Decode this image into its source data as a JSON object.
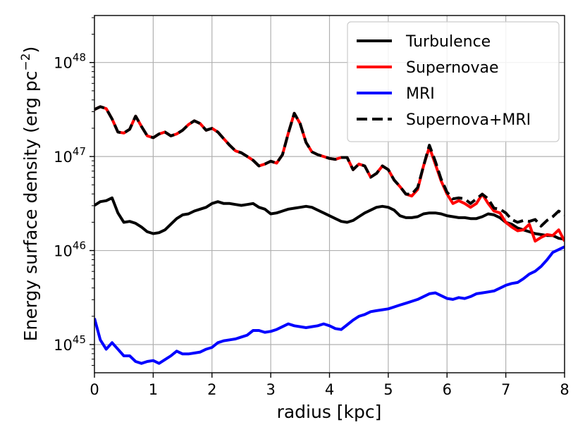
{
  "chart_data": {
    "type": "line",
    "title": "",
    "xlabel": "radius [kpc]",
    "ylabel_base": "Energy surface density (erg pc",
    "ylabel_exp": "−2",
    "ylabel_close": ")",
    "ylabel": "Energy surface density (erg pc−2)",
    "xlim": [
      0,
      8
    ],
    "ylim_log10": [
      44.7,
      48.5
    ],
    "yscale": "log",
    "grid": true,
    "legend_position": "top-right",
    "x_ticks": [
      {
        "value": 0,
        "label": "0"
      },
      {
        "value": 1,
        "label": "1"
      },
      {
        "value": 2,
        "label": "2"
      },
      {
        "value": 3,
        "label": "3"
      },
      {
        "value": 4,
        "label": "4"
      },
      {
        "value": 5,
        "label": "5"
      },
      {
        "value": 6,
        "label": "6"
      },
      {
        "value": 7,
        "label": "7"
      },
      {
        "value": 8,
        "label": "8"
      }
    ],
    "y_ticks": [
      {
        "exp": 45,
        "base": "10",
        "sup": "45"
      },
      {
        "exp": 46,
        "base": "10",
        "sup": "46"
      },
      {
        "exp": 47,
        "base": "10",
        "sup": "47"
      },
      {
        "exp": 48,
        "base": "10",
        "sup": "48"
      }
    ],
    "series": [
      {
        "name": "Turbulence",
        "color": "#000000",
        "dash": "solid",
        "x": [
          0,
          0.1,
          0.2,
          0.3,
          0.4,
          0.5,
          0.6,
          0.7,
          0.8,
          0.9,
          1.0,
          1.1,
          1.2,
          1.3,
          1.4,
          1.5,
          1.6,
          1.7,
          1.8,
          1.9,
          2.0,
          2.1,
          2.2,
          2.3,
          2.4,
          2.5,
          2.6,
          2.7,
          2.8,
          2.9,
          3.0,
          3.1,
          3.2,
          3.3,
          3.4,
          3.5,
          3.6,
          3.7,
          3.8,
          3.9,
          4.0,
          4.1,
          4.2,
          4.3,
          4.4,
          4.5,
          4.6,
          4.7,
          4.8,
          4.9,
          5.0,
          5.1,
          5.2,
          5.3,
          5.4,
          5.5,
          5.6,
          5.7,
          5.8,
          5.9,
          6.0,
          6.1,
          6.2,
          6.3,
          6.4,
          6.5,
          6.6,
          6.7,
          6.8,
          6.9,
          7.0,
          7.1,
          7.2,
          7.3,
          7.4,
          7.5,
          7.6,
          7.7,
          7.8,
          7.9,
          8.0
        ],
        "log10y": [
          46.48,
          46.52,
          46.53,
          46.56,
          46.4,
          46.3,
          46.31,
          46.29,
          46.25,
          46.2,
          46.18,
          46.19,
          46.22,
          46.28,
          46.34,
          46.38,
          46.39,
          46.42,
          46.44,
          46.46,
          46.5,
          46.52,
          46.5,
          46.5,
          46.49,
          46.48,
          46.49,
          46.5,
          46.46,
          46.44,
          46.39,
          46.4,
          46.42,
          46.44,
          46.45,
          46.46,
          46.47,
          46.46,
          46.43,
          46.4,
          46.37,
          46.34,
          46.31,
          46.3,
          46.32,
          46.36,
          46.4,
          46.43,
          46.46,
          46.47,
          46.46,
          46.43,
          46.37,
          46.35,
          46.35,
          46.36,
          46.39,
          46.4,
          46.4,
          46.39,
          46.37,
          46.36,
          46.35,
          46.35,
          46.34,
          46.34,
          46.36,
          46.39,
          46.38,
          46.35,
          46.3,
          46.28,
          46.24,
          46.22,
          46.2,
          46.18,
          46.17,
          46.16,
          46.16,
          46.13,
          46.12
        ]
      },
      {
        "name": "Supernovae",
        "color": "#ff0000",
        "dash": "solid",
        "x": [
          0,
          0.1,
          0.2,
          0.3,
          0.4,
          0.5,
          0.6,
          0.7,
          0.8,
          0.9,
          1.0,
          1.1,
          1.2,
          1.3,
          1.4,
          1.5,
          1.6,
          1.7,
          1.8,
          1.9,
          2.0,
          2.1,
          2.2,
          2.3,
          2.4,
          2.5,
          2.6,
          2.7,
          2.8,
          2.9,
          3.0,
          3.1,
          3.2,
          3.3,
          3.4,
          3.5,
          3.6,
          3.7,
          3.8,
          3.9,
          4.0,
          4.1,
          4.2,
          4.3,
          4.4,
          4.5,
          4.6,
          4.7,
          4.8,
          4.9,
          5.0,
          5.1,
          5.2,
          5.3,
          5.4,
          5.5,
          5.6,
          5.7,
          5.8,
          5.9,
          6.0,
          6.1,
          6.2,
          6.3,
          6.4,
          6.5,
          6.6,
          6.7,
          6.8,
          6.9,
          7.0,
          7.1,
          7.2,
          7.3,
          7.4,
          7.5,
          7.6,
          7.7,
          7.8,
          7.9,
          8.0
        ],
        "log10y": [
          47.5,
          47.53,
          47.51,
          47.4,
          47.26,
          47.25,
          47.29,
          47.43,
          47.32,
          47.22,
          47.2,
          47.24,
          47.26,
          47.22,
          47.24,
          47.28,
          47.34,
          47.38,
          47.35,
          47.28,
          47.3,
          47.26,
          47.19,
          47.12,
          47.06,
          47.04,
          47.0,
          46.96,
          46.9,
          46.92,
          46.95,
          46.93,
          47.02,
          47.25,
          47.46,
          47.35,
          47.15,
          47.05,
          47.02,
          47.0,
          46.98,
          46.97,
          46.99,
          46.99,
          46.86,
          46.92,
          46.9,
          46.78,
          46.82,
          46.9,
          46.86,
          46.75,
          46.68,
          46.6,
          46.58,
          46.65,
          46.9,
          47.1,
          46.92,
          46.74,
          46.6,
          46.5,
          46.53,
          46.5,
          46.46,
          46.5,
          46.6,
          46.5,
          46.42,
          46.4,
          46.3,
          46.25,
          46.21,
          46.22,
          46.28,
          46.1,
          46.14,
          46.17,
          46.16,
          46.22,
          46.1
        ]
      },
      {
        "name": "MRI",
        "color": "#0000ff",
        "dash": "solid",
        "x": [
          0,
          0.1,
          0.2,
          0.3,
          0.4,
          0.5,
          0.6,
          0.7,
          0.8,
          0.9,
          1.0,
          1.1,
          1.2,
          1.3,
          1.4,
          1.5,
          1.6,
          1.7,
          1.8,
          1.9,
          2.0,
          2.1,
          2.2,
          2.3,
          2.4,
          2.5,
          2.6,
          2.7,
          2.8,
          2.9,
          3.0,
          3.1,
          3.2,
          3.3,
          3.4,
          3.5,
          3.6,
          3.7,
          3.8,
          3.9,
          4.0,
          4.1,
          4.2,
          4.3,
          4.4,
          4.5,
          4.6,
          4.7,
          4.8,
          4.9,
          5.0,
          5.1,
          5.2,
          5.3,
          5.4,
          5.5,
          5.6,
          5.7,
          5.8,
          5.9,
          6.0,
          6.1,
          6.2,
          6.3,
          6.4,
          6.5,
          6.6,
          6.7,
          6.8,
          6.9,
          7.0,
          7.1,
          7.2,
          7.3,
          7.4,
          7.5,
          7.6,
          7.7,
          7.8,
          7.9,
          8.0
        ],
        "log10y": [
          45.28,
          45.05,
          44.95,
          45.02,
          44.95,
          44.88,
          44.88,
          44.82,
          44.8,
          44.82,
          44.83,
          44.8,
          44.84,
          44.88,
          44.93,
          44.9,
          44.9,
          44.91,
          44.92,
          44.95,
          44.97,
          45.02,
          45.04,
          45.05,
          45.06,
          45.08,
          45.1,
          45.15,
          45.15,
          45.13,
          45.14,
          45.16,
          45.19,
          45.22,
          45.2,
          45.19,
          45.18,
          45.19,
          45.2,
          45.22,
          45.2,
          45.17,
          45.16,
          45.21,
          45.26,
          45.3,
          45.32,
          45.35,
          45.36,
          45.37,
          45.38,
          45.4,
          45.42,
          45.44,
          45.46,
          45.48,
          45.51,
          45.54,
          45.55,
          45.52,
          45.49,
          45.48,
          45.5,
          45.49,
          45.51,
          45.54,
          45.55,
          45.56,
          45.57,
          45.6,
          45.63,
          45.65,
          45.66,
          45.7,
          45.75,
          45.78,
          45.83,
          45.9,
          45.98,
          46.01,
          46.04
        ]
      },
      {
        "name": "Supernova+MRI",
        "color": "#000000",
        "dash": "dashed",
        "x": [
          0,
          0.1,
          0.2,
          0.3,
          0.4,
          0.5,
          0.6,
          0.7,
          0.8,
          0.9,
          1.0,
          1.1,
          1.2,
          1.3,
          1.4,
          1.5,
          1.6,
          1.7,
          1.8,
          1.9,
          2.0,
          2.1,
          2.2,
          2.3,
          2.4,
          2.5,
          2.6,
          2.7,
          2.8,
          2.9,
          3.0,
          3.1,
          3.2,
          3.3,
          3.4,
          3.5,
          3.6,
          3.7,
          3.8,
          3.9,
          4.0,
          4.1,
          4.2,
          4.3,
          4.4,
          4.5,
          4.6,
          4.7,
          4.8,
          4.9,
          5.0,
          5.1,
          5.2,
          5.3,
          5.4,
          5.5,
          5.6,
          5.7,
          5.8,
          5.9,
          6.0,
          6.1,
          6.2,
          6.3,
          6.4,
          6.5,
          6.6,
          6.7,
          6.8,
          6.9,
          7.0,
          7.1,
          7.2,
          7.3,
          7.4,
          7.5,
          7.6,
          7.7,
          7.8,
          7.9,
          8.0
        ],
        "log10y": [
          47.5,
          47.53,
          47.51,
          47.4,
          47.26,
          47.25,
          47.29,
          47.43,
          47.32,
          47.22,
          47.2,
          47.24,
          47.26,
          47.22,
          47.24,
          47.28,
          47.34,
          47.38,
          47.35,
          47.28,
          47.3,
          47.26,
          47.19,
          47.12,
          47.06,
          47.04,
          47.0,
          46.96,
          46.9,
          46.92,
          46.95,
          46.93,
          47.02,
          47.25,
          47.46,
          47.35,
          47.15,
          47.05,
          47.02,
          47.0,
          46.98,
          46.97,
          46.99,
          46.99,
          46.86,
          46.92,
          46.9,
          46.78,
          46.82,
          46.9,
          46.86,
          46.75,
          46.68,
          46.6,
          46.6,
          46.67,
          46.9,
          47.12,
          46.95,
          46.76,
          46.62,
          46.55,
          46.56,
          46.55,
          46.5,
          46.55,
          46.6,
          46.55,
          46.45,
          46.44,
          46.4,
          46.33,
          46.3,
          46.32,
          46.31,
          46.33,
          46.26,
          46.32,
          46.36,
          46.42,
          46.38
        ]
      }
    ],
    "extra_turbulence_start": {
      "x": [
        0,
        0.05,
        0.1
      ],
      "log10y": [
        46.28,
        46.45,
        46.5
      ]
    }
  }
}
